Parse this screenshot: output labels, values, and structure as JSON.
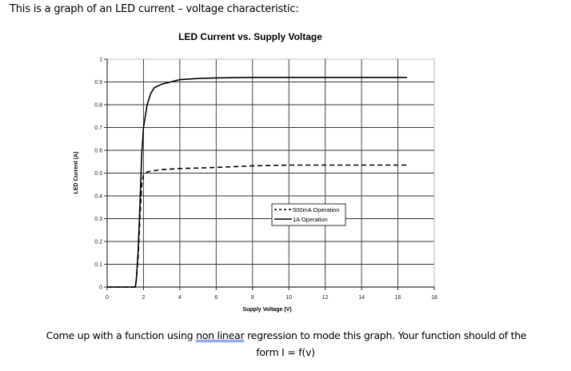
{
  "document": {
    "intro_text": "This is a graph of an LED current – voltage characteristic:",
    "question": {
      "part1": "Come up with a function using ",
      "underlined": "non linear",
      "part2": " regression to mode this graph. Your function should of the",
      "line2": "form I = f(v)"
    }
  },
  "chart_data": {
    "type": "line",
    "title": "LED Current vs. Supply Voltage",
    "xlabel": "Supply Voltage (V)",
    "ylabel": "LED Current (A)",
    "xlim": [
      0,
      18
    ],
    "ylim": [
      0,
      1
    ],
    "xticks": [
      0,
      2,
      4,
      6,
      8,
      10,
      12,
      14,
      16,
      18
    ],
    "yticks": [
      0,
      0.1,
      0.2,
      0.3,
      0.4,
      0.5,
      0.6,
      0.7,
      0.8,
      0.9,
      1
    ],
    "xtick_labels": [
      "0",
      "2",
      "4",
      "6",
      "8",
      "10",
      "12",
      "14",
      "16",
      "18"
    ],
    "ytick_labels": [
      "0",
      "0.1",
      "0.2",
      "0.3",
      "0.4",
      "0.5",
      "0.6",
      "0.7",
      "0.8",
      "0.9",
      "1"
    ],
    "grid": true,
    "legend_position": "inside-right-middle",
    "series": [
      {
        "name": "500mA Operation",
        "style": "dashed",
        "x": [
          0,
          1.0,
          1.55,
          1.6,
          1.7,
          1.8,
          1.9,
          2.0,
          2.2,
          2.5,
          3,
          4,
          5,
          6,
          8,
          10,
          12,
          14,
          16.5
        ],
        "y": [
          0,
          0,
          0,
          0.03,
          0.12,
          0.3,
          0.45,
          0.49,
          0.505,
          0.51,
          0.515,
          0.52,
          0.522,
          0.525,
          0.532,
          0.535,
          0.535,
          0.535,
          0.535
        ]
      },
      {
        "name": "1A Operation",
        "style": "solid",
        "x": [
          0,
          1.0,
          1.55,
          1.6,
          1.7,
          1.8,
          1.9,
          2.0,
          2.2,
          2.4,
          2.6,
          3,
          3.5,
          4,
          5,
          6,
          8,
          10,
          12,
          14,
          16.5
        ],
        "y": [
          0,
          0,
          0,
          0.03,
          0.15,
          0.35,
          0.58,
          0.7,
          0.8,
          0.85,
          0.875,
          0.89,
          0.9,
          0.91,
          0.915,
          0.918,
          0.92,
          0.92,
          0.92,
          0.92,
          0.92
        ]
      }
    ]
  }
}
